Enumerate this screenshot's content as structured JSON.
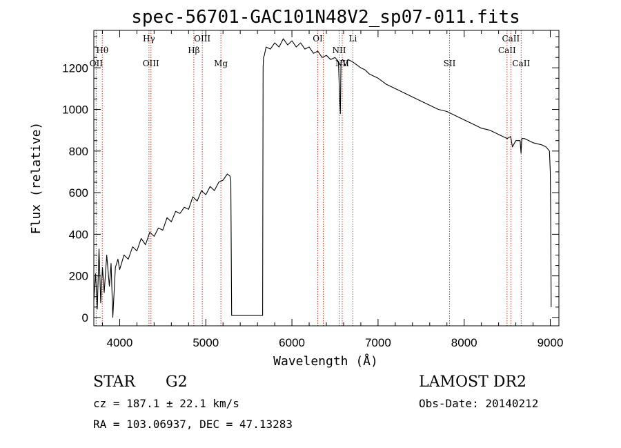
{
  "chart_data": {
    "type": "line",
    "title": "spec-56701-GAC101N48V2_sp07-011.fits",
    "xlabel": "Wavelength (Å)",
    "ylabel": "Flux (relative)",
    "xlim": [
      3700,
      9100
    ],
    "ylim": [
      -40,
      1380
    ],
    "x_ticks": [
      4000,
      5000,
      6000,
      7000,
      8000,
      9000
    ],
    "y_ticks": [
      0,
      200,
      400,
      600,
      800,
      1000,
      1200
    ],
    "grid": false,
    "series": [
      {
        "x": [
          3700,
          3720,
          3740,
          3760,
          3780,
          3800,
          3820,
          3850,
          3880,
          3900,
          3920,
          3950,
          3980,
          4000,
          4050,
          4100,
          4150,
          4200,
          4250,
          4300,
          4350,
          4400,
          4450,
          4500,
          4550,
          4600,
          4650,
          4700,
          4750,
          4800,
          4850,
          4900,
          4950,
          5000,
          5050,
          5100,
          5150,
          5200,
          5250,
          5280,
          5290,
          5300,
          5400,
          5500,
          5600,
          5660,
          5665,
          5670,
          5680,
          5700,
          5750,
          5800,
          5850,
          5900,
          5950,
          6000,
          6050,
          6100,
          6150,
          6200,
          6250,
          6300,
          6350,
          6400,
          6450,
          6500,
          6540,
          6555,
          6563,
          6570,
          6590,
          6620,
          6650,
          6700,
          6750,
          6800,
          6850,
          6900,
          6950,
          7000,
          7100,
          7200,
          7300,
          7400,
          7500,
          7600,
          7700,
          7800,
          7900,
          8000,
          8100,
          8200,
          8300,
          8400,
          8500,
          8540,
          8560,
          8600,
          8650,
          8660,
          8670,
          8700,
          8800,
          8900,
          8950,
          8990,
          9000,
          9005,
          9010
        ],
        "values": [
          80,
          210,
          40,
          330,
          70,
          240,
          120,
          300,
          150,
          260,
          0,
          240,
          280,
          230,
          300,
          280,
          340,
          320,
          380,
          350,
          410,
          390,
          430,
          420,
          480,
          460,
          510,
          500,
          530,
          520,
          580,
          560,
          610,
          590,
          630,
          610,
          650,
          660,
          690,
          680,
          660,
          10,
          10,
          10,
          10,
          10,
          1200,
          1250,
          1260,
          1300,
          1290,
          1320,
          1300,
          1340,
          1310,
          1330,
          1300,
          1320,
          1290,
          1300,
          1270,
          1280,
          1250,
          1260,
          1240,
          1250,
          1230,
          1050,
          980,
          1230,
          1240,
          1210,
          1240,
          1230,
          1215,
          1200,
          1190,
          1170,
          1160,
          1150,
          1120,
          1100,
          1080,
          1060,
          1040,
          1020,
          1000,
          990,
          970,
          950,
          930,
          910,
          900,
          880,
          860,
          870,
          820,
          850,
          850,
          790,
          860,
          860,
          840,
          830,
          820,
          800,
          700,
          500,
          50
        ]
      }
    ],
    "spectral_lines": [
      {
        "name": "Hθ",
        "x": 3798,
        "row": 1
      },
      {
        "name": "OII",
        "x": 3727,
        "row": 2
      },
      {
        "name": "Hγ",
        "x": 4340,
        "row": 0
      },
      {
        "name": "OIII",
        "x": 4363,
        "row": 2
      },
      {
        "name": "OIII",
        "x": 4959,
        "row": 0
      },
      {
        "name": "Hβ",
        "x": 4861,
        "row": 1
      },
      {
        "name": "Mg",
        "x": 5175,
        "row": 2
      },
      {
        "name": "OI",
        "x": 6300,
        "row": 0
      },
      {
        "name": "NII",
        "x": 6548,
        "row": 1
      },
      {
        "name": "NII",
        "x": 6584,
        "row": 2
      },
      {
        "name": "Li",
        "x": 6708,
        "row": 0
      },
      {
        "name": "SII",
        "x": 7830,
        "row": 2
      },
      {
        "name": "CaII",
        "x": 8542,
        "row": 0
      },
      {
        "name": "CaII",
        "x": 8498,
        "row": 1
      },
      {
        "name": "CaII",
        "x": 8662,
        "row": 2
      }
    ],
    "spectral_line_positions": [
      3727,
      3798,
      4340,
      4363,
      4861,
      4959,
      5175,
      6300,
      6364,
      6548,
      6584,
      6708,
      7830,
      8498,
      8542,
      8662
    ]
  },
  "info": {
    "object_class": "STAR",
    "subclass": "G2",
    "survey": "LAMOST DR2",
    "redshift": "cz = 187.1 ± 22.1 km/s",
    "obs_date": "Obs-Date: 20140212",
    "coords": "RA = 103.06937, DEC =  47.13283"
  },
  "colors": {
    "line_marker": "#c0392b",
    "spectrum": "#000000"
  }
}
